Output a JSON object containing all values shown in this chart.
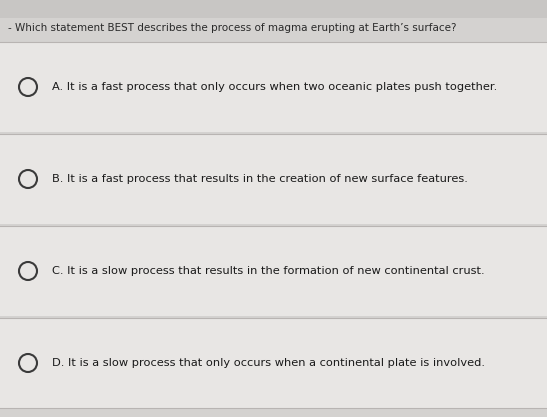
{
  "question": "- Which statement BEST describes the process of magma erupting at Earth’s surface?",
  "options": [
    "A. It is a fast process that only occurs when two oceanic plates push together.",
    "B. It is a fast process that results in the creation of new surface features.",
    "C. It is a slow process that results in the formation of new continental crust.",
    "D. It is a slow process that only occurs when a continental plate is involved."
  ],
  "top_bg_color": "#c8c6c4",
  "main_bg_color": "#d4d2d0",
  "option_bg_light": "#e8e6e4",
  "option_bg_dark": "#dedad8",
  "separator_color": "#b8b4b2",
  "question_font_size": 7.5,
  "option_font_size": 8.2,
  "question_color": "#2a2a2a",
  "option_color": "#1a1a1a",
  "circle_edge_color": "#3a3a3a",
  "fig_width": 5.47,
  "fig_height": 4.17,
  "dpi": 100
}
